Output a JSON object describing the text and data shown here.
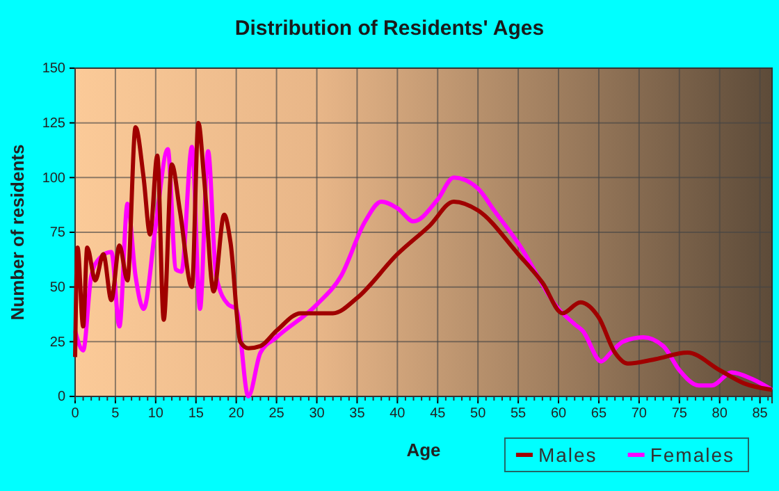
{
  "chart_data": {
    "type": "line",
    "title": "Distribution of Residents' Ages",
    "xlabel": "Age",
    "ylabel": "Number of residents",
    "xlim": [
      0,
      86.5
    ],
    "xticks": [
      0,
      5,
      10,
      15,
      20,
      25,
      30,
      35,
      40,
      45,
      50,
      55,
      60,
      65,
      70,
      75,
      80,
      85
    ],
    "ylim": [
      0,
      150
    ],
    "yticks": [
      0,
      25,
      50,
      75,
      100,
      125,
      150
    ],
    "grid": true,
    "legend": "bottom right",
    "line_style": "solid",
    "marker": "none",
    "series": [
      {
        "name": "Males",
        "color": "#a00000",
        "x": [
          0,
          0.3,
          1,
          1.5,
          2.5,
          3.5,
          4.5,
          5.5,
          6.5,
          7.5,
          8.5,
          9.3,
          10.2,
          11,
          12,
          13,
          14.5,
          15.3,
          16,
          17.2,
          18.5,
          19.3,
          20.5,
          21.5,
          23,
          25,
          28,
          32,
          35,
          40,
          44,
          47,
          50,
          55,
          58,
          60.5,
          62.7,
          65,
          67,
          68.6,
          72,
          76,
          80,
          83,
          86.5
        ],
        "values": [
          18,
          68,
          32,
          68,
          53,
          65,
          44,
          69,
          53,
          123,
          100,
          74,
          110,
          35,
          106,
          85,
          50,
          125,
          100,
          48,
          83,
          70,
          25,
          22,
          23,
          30,
          38,
          38,
          45,
          65,
          78,
          89,
          85,
          65,
          52,
          38,
          43,
          36,
          20,
          15,
          17,
          20,
          12,
          6,
          3
        ]
      },
      {
        "name": "Females",
        "color": "#ff00ff",
        "x": [
          0,
          1,
          2,
          3,
          4.5,
          5.5,
          6.5,
          7.5,
          8.5,
          10,
          11.5,
          12.5,
          13.2,
          14.5,
          15.5,
          16.5,
          17.5,
          19,
          20,
          21.5,
          23,
          25,
          30,
          33,
          36,
          38,
          40,
          42,
          45,
          47,
          50,
          52,
          55,
          60,
          62,
          63,
          65.3,
          66.5,
          68,
          70.5,
          73,
          75,
          77.4,
          79,
          81.5,
          84,
          86.5
        ],
        "values": [
          30,
          21,
          55,
          63,
          66,
          32,
          88,
          55,
          40,
          78,
          113,
          58,
          57,
          114,
          40,
          112,
          55,
          42,
          40,
          0,
          20,
          27,
          42,
          55,
          80,
          89,
          86,
          80,
          90,
          100,
          95,
          85,
          70,
          40,
          33,
          30,
          16,
          20,
          25,
          27,
          23,
          12,
          5,
          5,
          11,
          8,
          3
        ]
      }
    ]
  }
}
